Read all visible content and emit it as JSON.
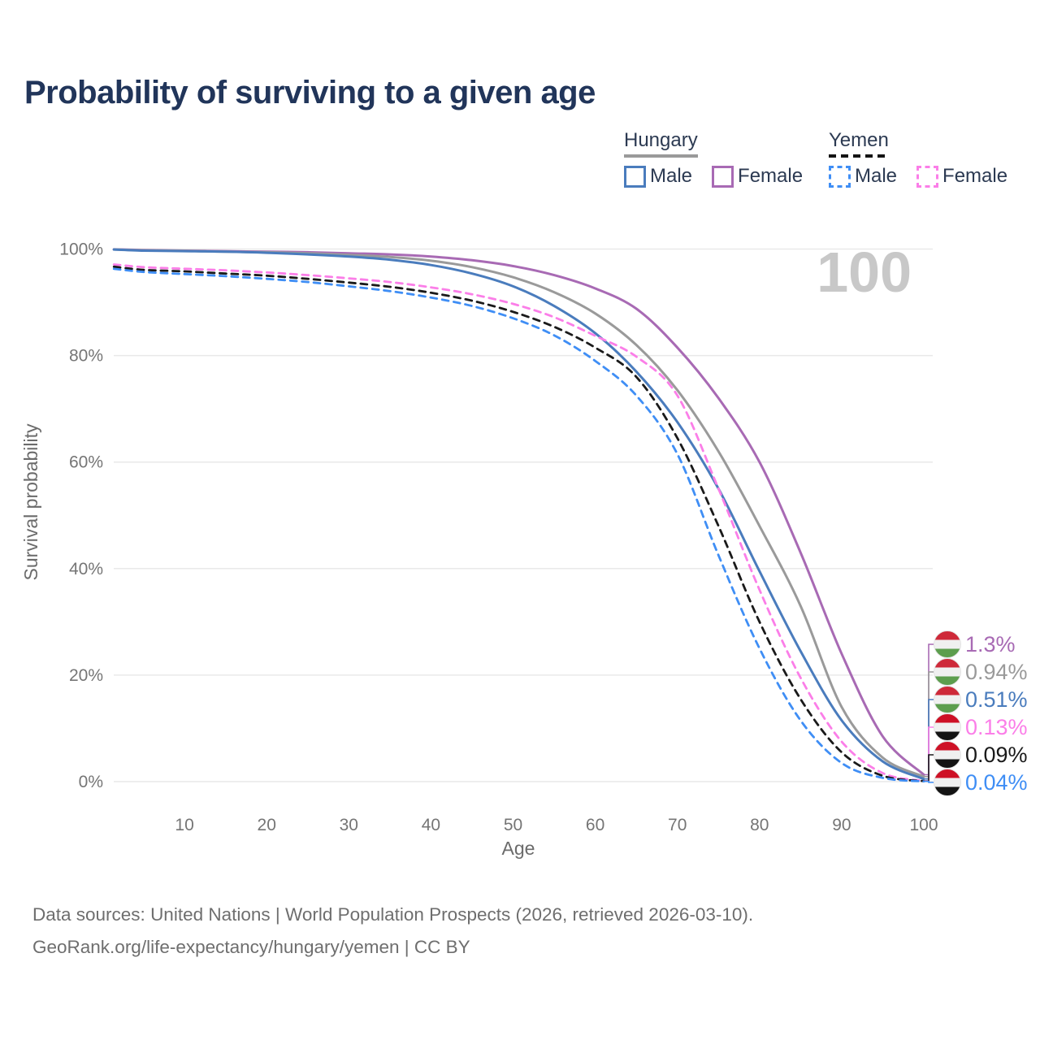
{
  "title": "Probability of surviving to a given age",
  "watermark": {
    "text": "100"
  },
  "legend": {
    "groups": [
      {
        "country": "Hungary",
        "line_style": "solid",
        "underline_color": "#9a9a9a",
        "items": [
          {
            "label": "Male",
            "color": "#4a7cbd"
          },
          {
            "label": "Female",
            "color": "#a86ab4"
          }
        ]
      },
      {
        "country": "Yemen",
        "line_style": "dashed",
        "underline_color": "#141414",
        "items": [
          {
            "label": "Male",
            "color": "#3f8ef5"
          },
          {
            "label": "Female",
            "color": "#fb7ee8"
          }
        ]
      }
    ]
  },
  "chart_data": {
    "type": "line",
    "title": "Probability of surviving to a given age",
    "xlabel": "Age",
    "ylabel": "Survival probability",
    "xlim": [
      0,
      100
    ],
    "ylim": [
      0,
      100
    ],
    "grid": "horizontal",
    "x_ticks": [
      10,
      20,
      30,
      40,
      50,
      60,
      70,
      80,
      90,
      100
    ],
    "y_ticks": [
      {
        "value": 100,
        "label": "100%"
      },
      {
        "value": 80,
        "label": "80%"
      },
      {
        "value": 60,
        "label": "60%"
      },
      {
        "value": 40,
        "label": "40%"
      },
      {
        "value": 20,
        "label": "20%"
      },
      {
        "value": 0,
        "label": "0%"
      }
    ],
    "x": [
      0,
      5,
      10,
      15,
      20,
      25,
      30,
      35,
      40,
      45,
      50,
      55,
      60,
      65,
      70,
      75,
      80,
      85,
      90,
      95,
      100
    ],
    "series": [
      {
        "name": "Hungary Female",
        "country": "Hungary",
        "sex": "Female",
        "color": "#a86ab4",
        "dashed": false,
        "flag": "hungary",
        "end_label": "1.3%",
        "values": [
          100,
          99.8,
          99.7,
          99.6,
          99.5,
          99.4,
          99.2,
          99.0,
          98.6,
          97.9,
          96.8,
          95.1,
          92.6,
          88.8,
          81.5,
          72.0,
          60.0,
          43.0,
          24.0,
          8.5,
          1.3
        ]
      },
      {
        "name": "Hungary Both sexes",
        "country": "Hungary",
        "sex": "Both",
        "color": "#9a9a9a",
        "dashed": false,
        "flag": "hungary",
        "end_label": "0.94%",
        "values": [
          100,
          99.75,
          99.65,
          99.5,
          99.4,
          99.2,
          98.9,
          98.5,
          97.8,
          96.6,
          94.7,
          91.9,
          87.9,
          82.0,
          73.5,
          62.0,
          48.0,
          33.0,
          14.0,
          4.5,
          0.94
        ]
      },
      {
        "name": "Hungary Male",
        "country": "Hungary",
        "sex": "Male",
        "color": "#4a7cbd",
        "dashed": false,
        "flag": "hungary",
        "end_label": "0.51%",
        "values": [
          100,
          99.7,
          99.6,
          99.5,
          99.3,
          99.0,
          98.6,
          98.0,
          97.0,
          95.4,
          93.0,
          89.3,
          84.2,
          77.0,
          67.5,
          55.0,
          39.5,
          24.5,
          11.5,
          3.8,
          0.51
        ]
      },
      {
        "name": "Yemen Female",
        "country": "Yemen",
        "sex": "Female",
        "color": "#fb7ee8",
        "dashed": true,
        "flag": "yemen",
        "end_label": "0.13%",
        "values": [
          97.3,
          96.6,
          96.3,
          96.0,
          95.6,
          95.1,
          94.5,
          93.8,
          92.8,
          91.5,
          89.7,
          87.2,
          83.7,
          79.8,
          72.5,
          55.0,
          36.0,
          19.5,
          7.5,
          1.6,
          0.13
        ]
      },
      {
        "name": "Yemen Both sexes",
        "country": "Yemen",
        "sex": "Both",
        "color": "#1a1a1a",
        "dashed": true,
        "flag": "yemen",
        "end_label": "0.09%",
        "values": [
          96.9,
          96.1,
          95.8,
          95.4,
          95.0,
          94.4,
          93.7,
          92.9,
          91.8,
          90.3,
          88.2,
          85.4,
          81.5,
          76.0,
          64.5,
          48.0,
          30.0,
          15.5,
          5.5,
          1.1,
          0.09
        ]
      },
      {
        "name": "Yemen Male",
        "country": "Yemen",
        "sex": "Male",
        "color": "#3f8ef5",
        "dashed": true,
        "flag": "yemen",
        "end_label": "0.04%",
        "values": [
          96.5,
          95.7,
          95.3,
          94.9,
          94.4,
          93.8,
          93.0,
          92.1,
          90.9,
          89.3,
          87.0,
          83.8,
          79.0,
          72.5,
          61.5,
          42.5,
          25.0,
          11.5,
          3.5,
          0.7,
          0.04
        ]
      }
    ],
    "flag_colors": {
      "hungary": [
        "#ce2939",
        "#f0f0f0",
        "#5d9e4e"
      ],
      "yemen": [
        "#ce1126",
        "#f0f0f0",
        "#141414"
      ]
    }
  },
  "footer": {
    "line1": "Data sources: United Nations | World Population Prospects (2026, retrieved 2026-03-10).",
    "line2": "GeoRank.org/life-expectancy/hungary/yemen | CC BY"
  }
}
